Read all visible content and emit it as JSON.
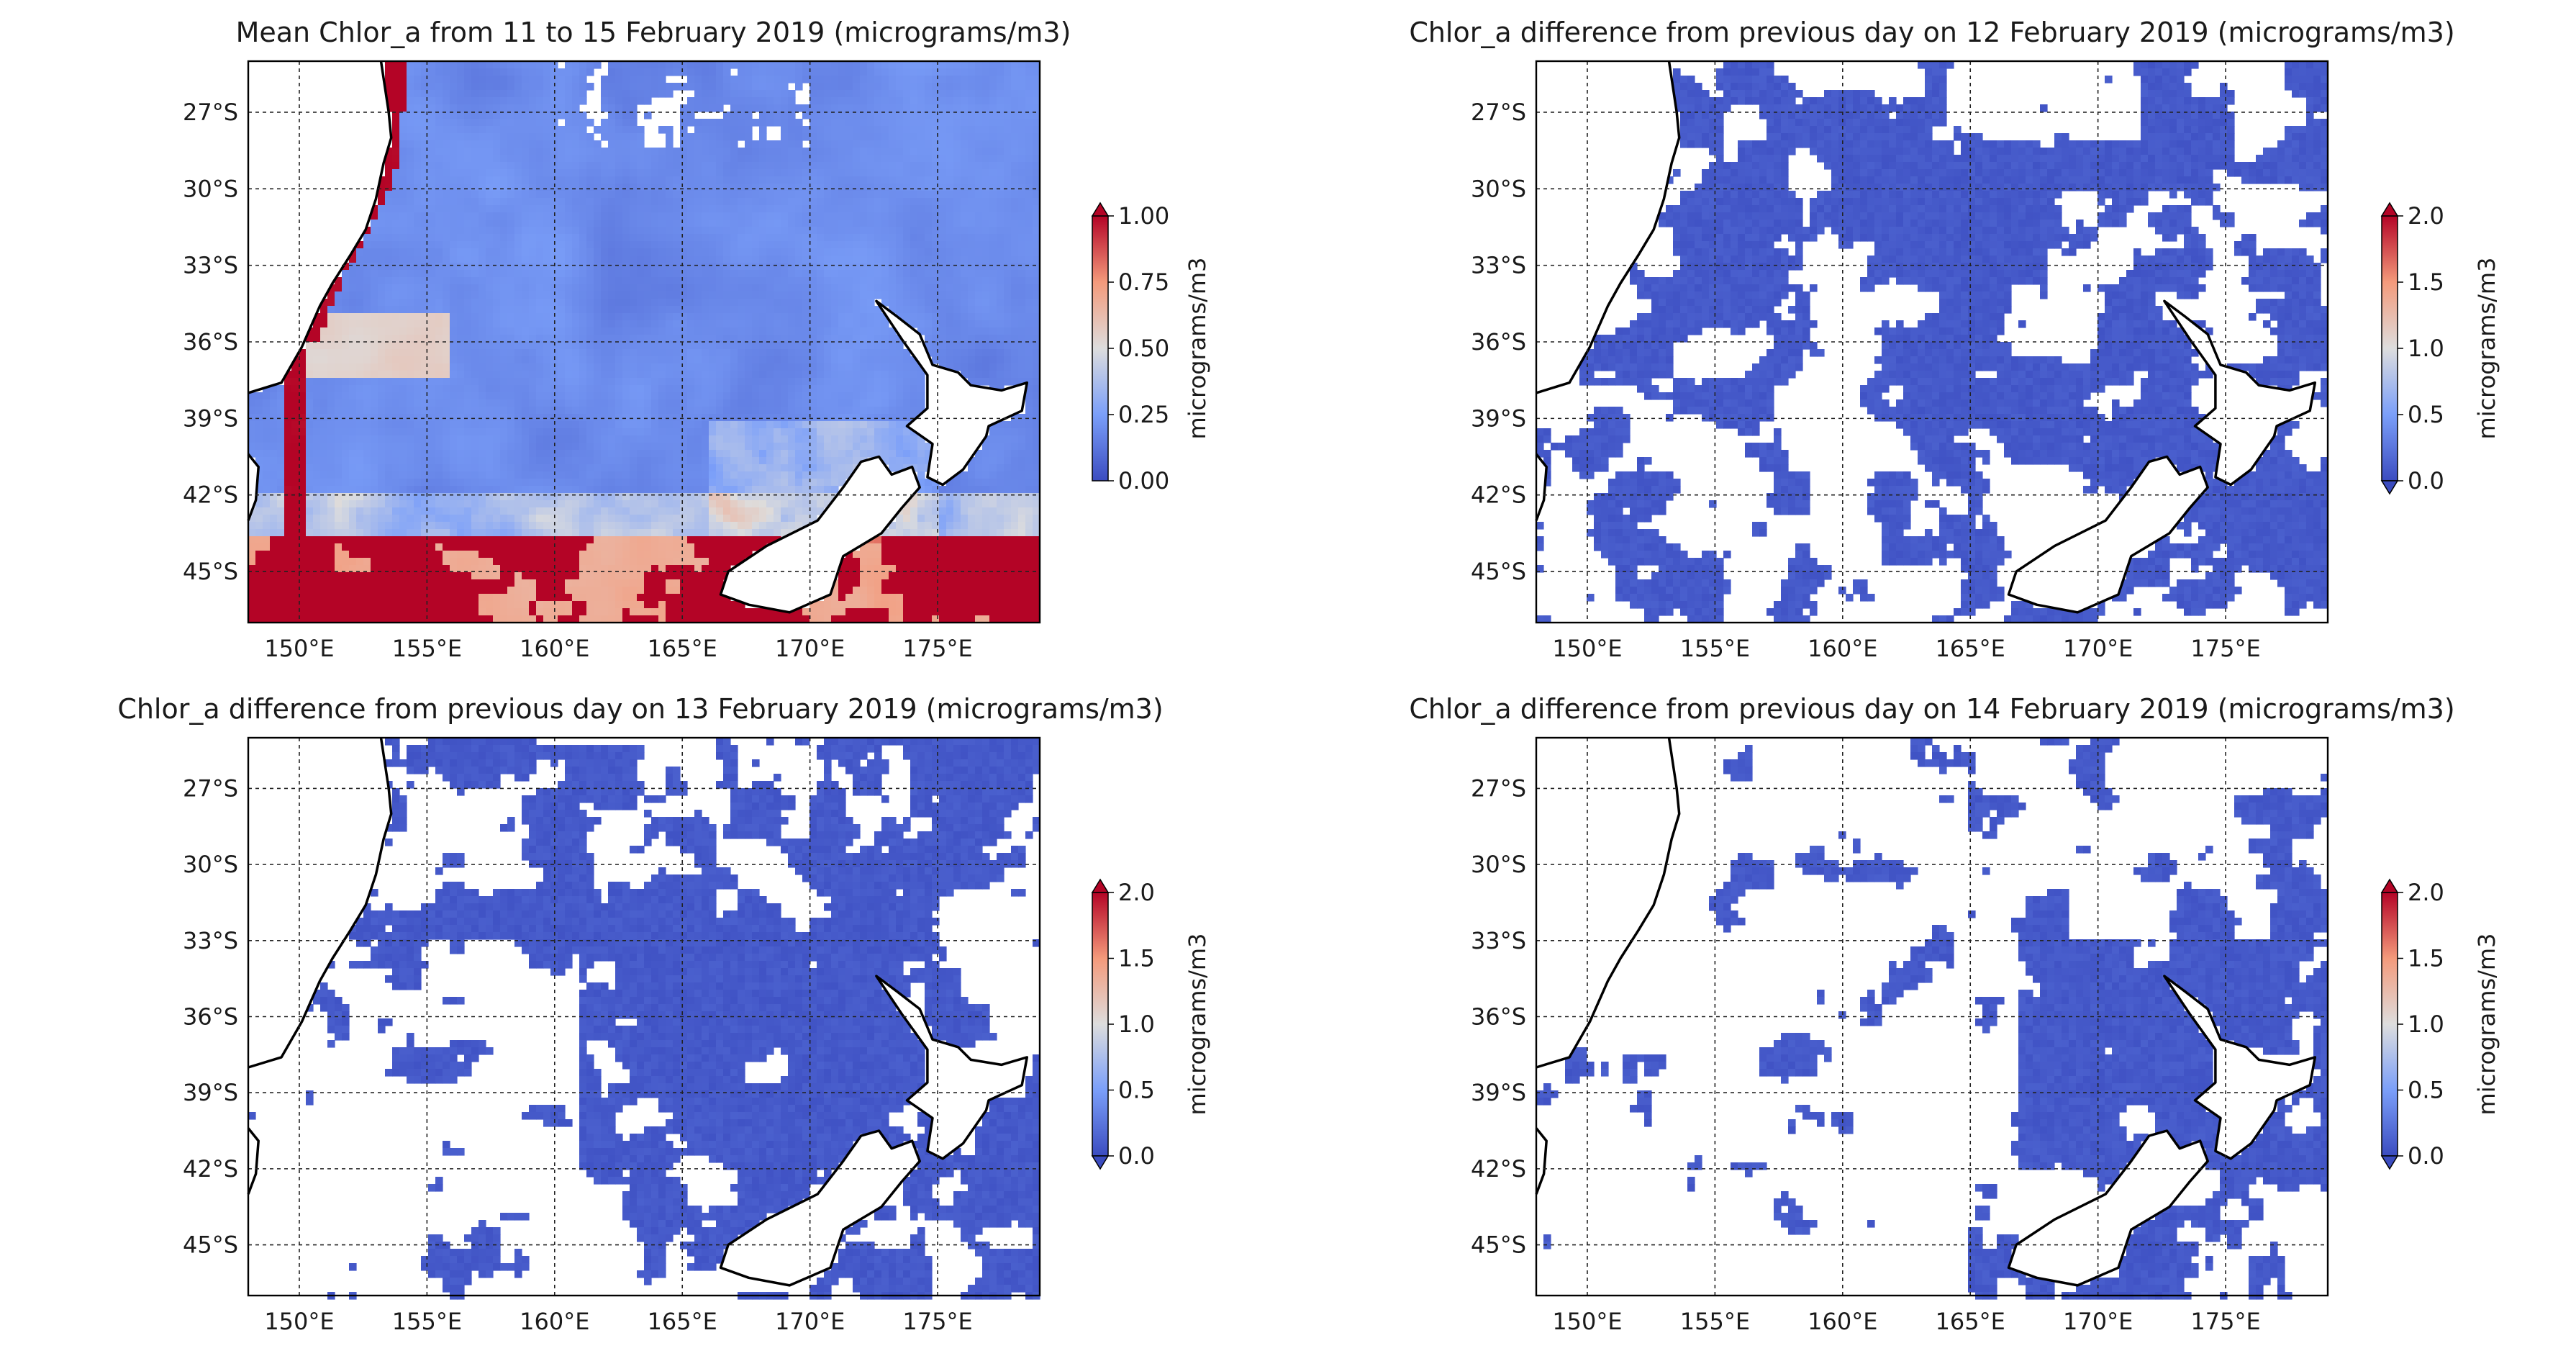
{
  "chart_data": [
    {
      "type": "heatmap",
      "title": "Mean Chlor_a from 11 to 15 February 2019  (micrograms/m3)",
      "xlim": [
        148,
        179
      ],
      "ylim": [
        -47,
        -25
      ],
      "x_ticks": [
        "150°E",
        "155°E",
        "160°E",
        "165°E",
        "170°E",
        "175°E"
      ],
      "y_ticks": [
        "27°S",
        "30°S",
        "33°S",
        "36°S",
        "39°S",
        "42°S",
        "45°S"
      ],
      "grid": true,
      "colormap": "coolwarm",
      "colorbar": {
        "label": "micrograms/m3",
        "min": 0.0,
        "max": 1.0,
        "ticks": [
          "0.00",
          "0.25",
          "0.50",
          "0.75",
          "1.00"
        ],
        "extend": "max"
      },
      "field_pattern": "full",
      "description_regions": [
        {
          "region": "open ocean",
          "value": 0.15
        },
        {
          "region": "southern band south of 43°S",
          "value": 1.0
        },
        {
          "region": "coastal Australia",
          "value": 0.9
        }
      ]
    },
    {
      "type": "heatmap",
      "title": "Chlor_a difference from previous day on 12 February 2019 (micrograms/m3)",
      "xlim": [
        148,
        179
      ],
      "ylim": [
        -47,
        -25
      ],
      "x_ticks": [
        "150°E",
        "155°E",
        "160°E",
        "165°E",
        "170°E",
        "175°E"
      ],
      "y_ticks": [
        "27°S",
        "30°S",
        "33°S",
        "36°S",
        "39°S",
        "42°S",
        "45°S"
      ],
      "grid": true,
      "colormap": "coolwarm",
      "colorbar": {
        "label": "micrograms/m3",
        "min": 0.0,
        "max": 2.0,
        "ticks": [
          "0.0",
          "0.5",
          "1.0",
          "1.5",
          "2.0"
        ],
        "extend": "both"
      },
      "field_pattern": "diff12",
      "typical_value": 0.0
    },
    {
      "type": "heatmap",
      "title": "Chlor_a difference from previous day on 13 February 2019 (micrograms/m3)",
      "xlim": [
        148,
        179
      ],
      "ylim": [
        -47,
        -25
      ],
      "x_ticks": [
        "150°E",
        "155°E",
        "160°E",
        "165°E",
        "170°E",
        "175°E"
      ],
      "y_ticks": [
        "27°S",
        "30°S",
        "33°S",
        "36°S",
        "39°S",
        "42°S",
        "45°S"
      ],
      "grid": true,
      "colormap": "coolwarm",
      "colorbar": {
        "label": "micrograms/m3",
        "min": 0.0,
        "max": 2.0,
        "ticks": [
          "0.0",
          "0.5",
          "1.0",
          "1.5",
          "2.0"
        ],
        "extend": "both"
      },
      "field_pattern": "diff13",
      "typical_value": 0.0
    },
    {
      "type": "heatmap",
      "title": "Chlor_a difference from previous day on 14 February 2019 (micrograms/m3)",
      "xlim": [
        148,
        179
      ],
      "ylim": [
        -47,
        -25
      ],
      "x_ticks": [
        "150°E",
        "155°E",
        "160°E",
        "165°E",
        "170°E",
        "175°E"
      ],
      "y_ticks": [
        "27°S",
        "30°S",
        "33°S",
        "36°S",
        "39°S",
        "42°S",
        "45°S"
      ],
      "grid": true,
      "colormap": "coolwarm",
      "colorbar": {
        "label": "micrograms/m3",
        "min": 0.0,
        "max": 2.0,
        "ticks": [
          "0.0",
          "0.5",
          "1.0",
          "1.5",
          "2.0"
        ],
        "extend": "both"
      },
      "field_pattern": "diff14",
      "typical_value": 0.0
    }
  ],
  "colors": {
    "low": "#3b4cc0",
    "mid": "#dddddd",
    "high": "#b40426",
    "land": "#ffffff",
    "coastline": "#000000"
  }
}
